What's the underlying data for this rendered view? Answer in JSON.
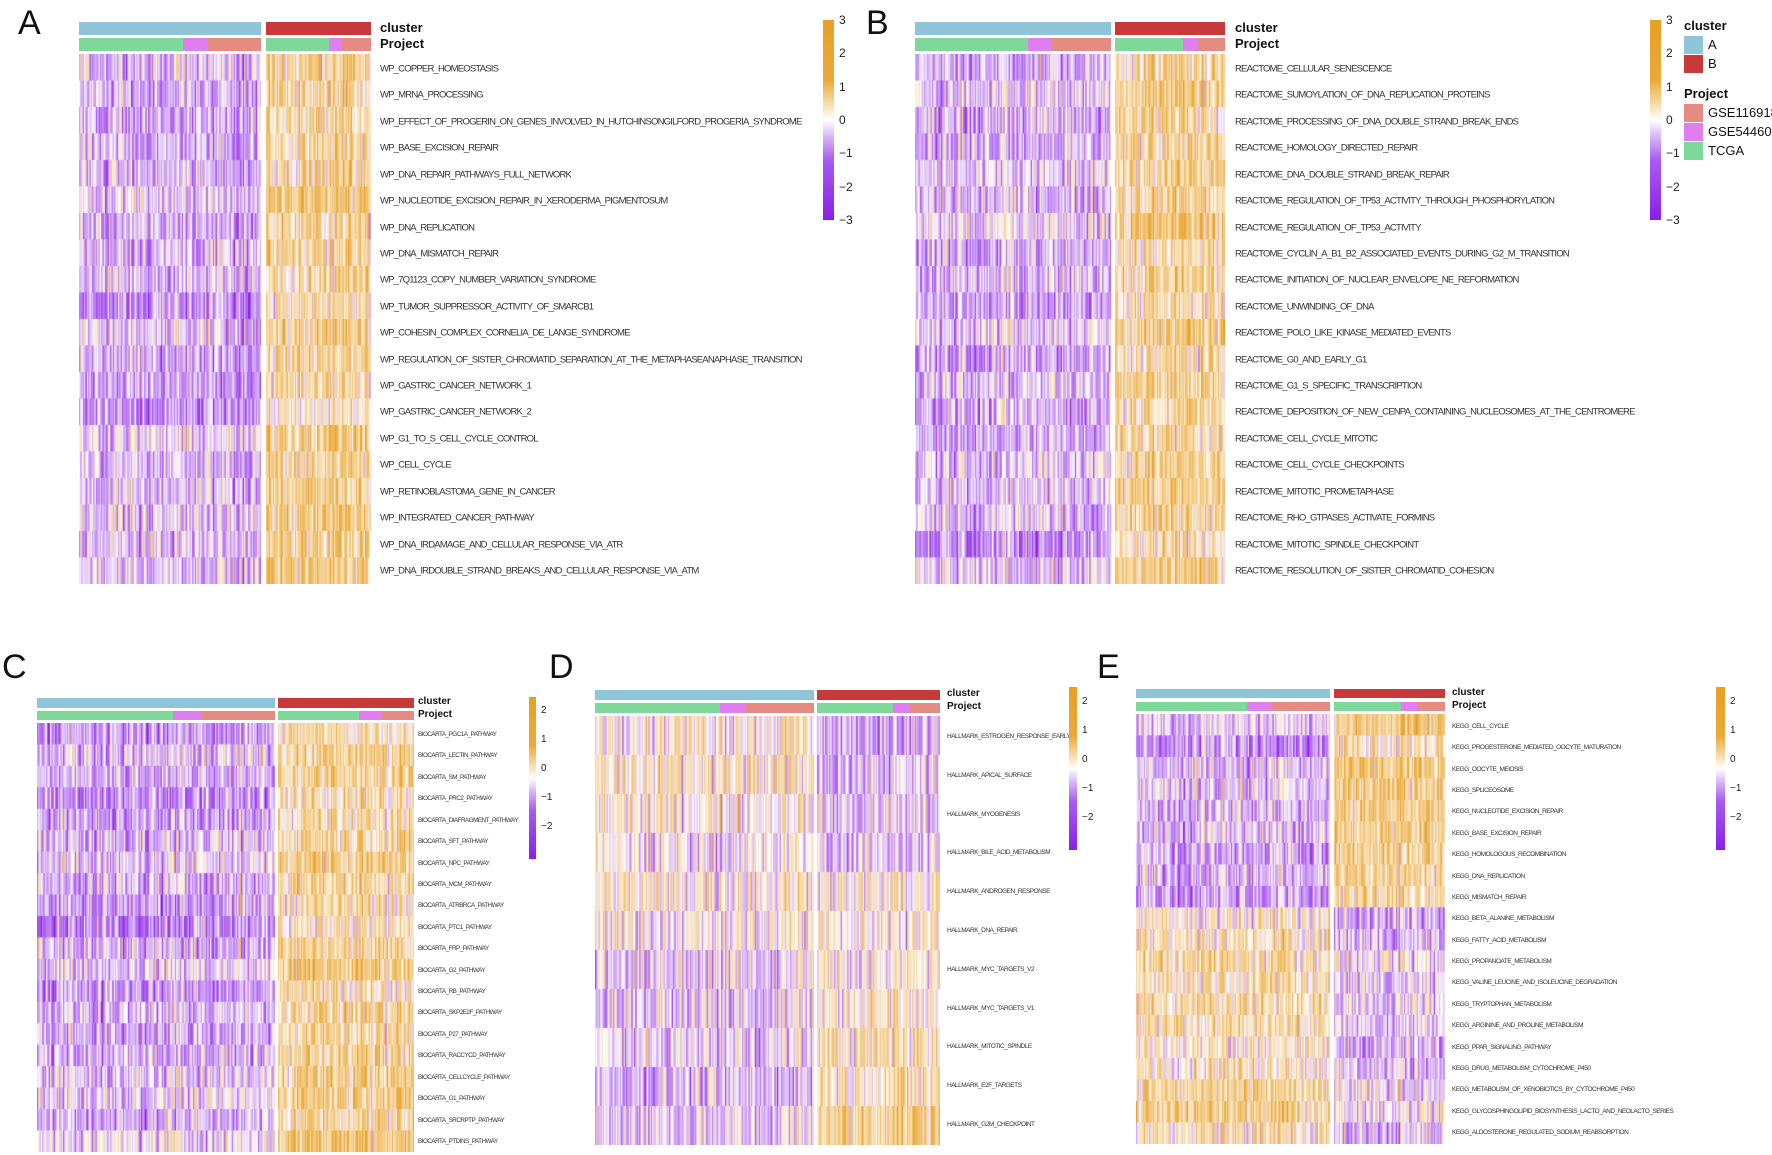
{
  "legend": {
    "cluster_title": "cluster",
    "project_title": "Project",
    "clusters": [
      {
        "label": "A",
        "color": "#8ec5d8"
      },
      {
        "label": "B",
        "color": "#c83a3a"
      }
    ],
    "projects": [
      {
        "label": "GSE116918",
        "color": "#e48c82"
      },
      {
        "label": "GSE54460",
        "color": "#e07ef0"
      },
      {
        "label": "TCGA",
        "color": "#7dd89a"
      }
    ],
    "scale_colors": {
      "low": "#8a1fe8",
      "mid": "#ffffff",
      "high": "#e8a024"
    }
  },
  "chart_data": [
    {
      "type": "heatmap",
      "panel": "A",
      "annotation_labels": [
        "cluster",
        "Project"
      ],
      "color_range": [
        -3,
        3
      ],
      "colorbar_ticks": [
        "3",
        "2",
        "1",
        "0",
        "−1",
        "−2",
        "−3"
      ],
      "rows": [
        "WP_COPPER_HOMEOSTASIS",
        "WP_MRNA_PROCESSING",
        "WP_EFFECT_OF_PROGERIN_ON_GENES_INVOLVED_IN_HUTCHINSONGILFORD_PROGERIA_SYNDROME",
        "WP_BASE_EXCISION_REPAIR",
        "WP_DNA_REPAIR_PATHWAYS_FULL_NETWORK",
        "WP_NUCLEOTIDE_EXCISION_REPAIR_IN_XERODERMA_PIGMENTOSUM",
        "WP_DNA_REPLICATION",
        "WP_DNA_MISMATCH_REPAIR",
        "WP_7Q1123_COPY_NUMBER_VARIATION_SYNDROME",
        "WP_TUMOR_SUPPRESSOR_ACTIVITY_OF_SMARCB1",
        "WP_COHESIN_COMPLEX_CORNELIA_DE_LANGE_SYNDROME",
        "WP_REGULATION_OF_SISTER_CHROMATID_SEPARATION_AT_THE_METAPHASEANAPHASE_TRANSITION",
        "WP_GASTRIC_CANCER_NETWORK_1",
        "WP_GASTRIC_CANCER_NETWORK_2",
        "WP_G1_TO_S_CELL_CYCLE_CONTROL",
        "WP_CELL_CYCLE",
        "WP_RETINOBLASTOMA_GENE_IN_CANCER",
        "WP_INTEGRATED_CANCER_PATHWAY",
        "WP_DNA_IRDAMAGE_AND_CELLULAR_RESPONSE_VIA_ATR",
        "WP_DNA_IRDOUBLE_STRAND_BREAKS_AND_CELLULAR_RESPONSE_VIA_ATM"
      ],
      "trend": "cluster A mostly low (purple), cluster B mostly high (orange)"
    },
    {
      "type": "heatmap",
      "panel": "B",
      "annotation_labels": [
        "cluster",
        "Project"
      ],
      "color_range": [
        -3,
        3
      ],
      "colorbar_ticks": [
        "3",
        "2",
        "1",
        "0",
        "−1",
        "−2",
        "−3"
      ],
      "rows": [
        "REACTOME_CELLULAR_SENESCENCE",
        "REACTOME_SUMOYLATION_OF_DNA_REPLICATION_PROTEINS",
        "REACTOME_PROCESSING_OF_DNA_DOUBLE_STRAND_BREAK_ENDS",
        "REACTOME_HOMOLOGY_DIRECTED_REPAIR",
        "REACTOME_DNA_DOUBLE_STRAND_BREAK_REPAIR",
        "REACTOME_REGULATION_OF_TP53_ACTIVITY_THROUGH_PHOSPHORYLATION",
        "REACTOME_REGULATION_OF_TP53_ACTIVITY",
        "REACTOME_CYCLIN_A_B1_B2_ASSOCIATED_EVENTS_DURING_G2_M_TRANSITION",
        "REACTOME_INITIATION_OF_NUCLEAR_ENVELOPE_NE_REFORMATION",
        "REACTOME_UNWINDING_OF_DNA",
        "REACTOME_POLO_LIKE_KINASE_MEDIATED_EVENTS",
        "REACTOME_G0_AND_EARLY_G1",
        "REACTOME_G1_S_SPECIFIC_TRANSCRIPTION",
        "REACTOME_DEPOSITION_OF_NEW_CENPA_CONTAINING_NUCLEOSOMES_AT_THE_CENTROMERE",
        "REACTOME_CELL_CYCLE_MITOTIC",
        "REACTOME_CELL_CYCLE_CHECKPOINTS",
        "REACTOME_MITOTIC_PROMETAPHASE",
        "REACTOME_RHO_GTPASES_ACTIVATE_FORMINS",
        "REACTOME_MITOTIC_SPINDLE_CHECKPOINT",
        "REACTOME_RESOLUTION_OF_SISTER_CHROMATID_COHESION"
      ],
      "trend": "cluster A mostly low (purple), cluster B mostly high (orange)"
    },
    {
      "type": "heatmap",
      "panel": "C",
      "annotation_labels": [
        "cluster",
        "Project"
      ],
      "color_range": [
        -2.5,
        2.5
      ],
      "colorbar_ticks": [
        "2",
        "1",
        "0",
        "−1",
        "−2"
      ],
      "rows": [
        "BIOCARTA_PGC1A_PATHWAY",
        "BIOCARTA_LECTIN_PATHWAY",
        "BIOCARTA_SM_PATHWAY",
        "BIOCARTA_PRC2_PATHWAY",
        "BIOCARTA_DIAFRAGMENT_PATHWAY",
        "BIOCARTA_SFT_PATHWAY",
        "BIOCARTA_NPC_PATHWAY",
        "BIOCARTA_MCM_PATHWAY",
        "BIOCARTA_ATRBRCA_PATHWAY",
        "BIOCARTA_PTC1_PATHWAY",
        "BIOCARTA_FRP_PATHWAY",
        "BIOCARTA_G2_PATHWAY",
        "BIOCARTA_RB_PATHWAY",
        "BIOCARTA_SKP2E2F_PATHWAY",
        "BIOCARTA_P27_PATHWAY",
        "BIOCARTA_RACCYCD_PATHWAY",
        "BIOCARTA_CELLCYCLE_PATHWAY",
        "BIOCARTA_G1_PATHWAY",
        "BIOCARTA_SRCRPTP_PATHWAY",
        "BIOCARTA_PTDINS_PATHWAY"
      ],
      "trend": "cluster A mostly low (purple), cluster B mostly high (orange)"
    },
    {
      "type": "heatmap",
      "panel": "D",
      "annotation_labels": [
        "cluster",
        "Project"
      ],
      "color_range": [
        -2.5,
        2.5
      ],
      "colorbar_ticks": [
        "2",
        "1",
        "0",
        "−1",
        "−2"
      ],
      "rows": [
        "HALLMARK_ESTROGEN_RESPONSE_EARLY",
        "HALLMARK_APICAL_SURFACE",
        "HALLMARK_MYOGENESIS",
        "HALLMARK_BILE_ACID_METABOLISM",
        "HALLMARK_ANDROGEN_RESPONSE",
        "HALLMARK_DNA_REPAIR",
        "HALLMARK_MYC_TARGETS_V2",
        "HALLMARK_MYC_TARGETS_V1",
        "HALLMARK_MITOTIC_SPINDLE",
        "HALLMARK_E2F_TARGETS",
        "HALLMARK_G2M_CHECKPOINT"
      ],
      "trend": "first rows higher in cluster A, last rows higher in cluster B"
    },
    {
      "type": "heatmap",
      "panel": "E",
      "annotation_labels": [
        "cluster",
        "Project"
      ],
      "color_range": [
        -2.5,
        2.5
      ],
      "colorbar_ticks": [
        "2",
        "1",
        "0",
        "−1",
        "−2"
      ],
      "rows": [
        "KEGG_CELL_CYCLE",
        "KEGG_PROGESTERONE_MEDIATED_OOCYTE_MATURATION",
        "KEGG_OOCYTE_MEIOSIS",
        "KEGG_SPLICEOSOME",
        "KEGG_NUCLEOTIDE_EXCISION_REPAIR",
        "KEGG_BASE_EXCISION_REPAIR",
        "KEGG_HOMOLOGOUS_RECOMBINATION",
        "KEGG_DNA_REPLICATION",
        "KEGG_MISMATCH_REPAIR",
        "KEGG_BETA_ALANINE_METABOLISM",
        "KEGG_FATTY_ACID_METABOLISM",
        "KEGG_PROPANOATE_METABOLISM",
        "KEGG_VALINE_LEUCINE_AND_ISOLEUCINE_DEGRADATION",
        "KEGG_TRYPTOPHAN_METABOLISM",
        "KEGG_ARGININE_AND_PROLINE_METABOLISM",
        "KEGG_PPAR_SIGNALING_PATHWAY",
        "KEGG_DRUG_METABOLISM_CYTOCHROME_P450",
        "KEGG_METABOLISM_OF_XENOBIOTICS_BY_CYTOCHROME_P450",
        "KEGG_GLYCOSPHINGOLIPID_BIOSYNTHESIS_LACTO_AND_NEOLACTO_SERIES",
        "KEGG_ALDOSTERONE_REGULATED_SODIUM_REABSORPTION"
      ],
      "trend": "first 9 rows higher in cluster B, remaining rows higher in cluster A"
    }
  ]
}
